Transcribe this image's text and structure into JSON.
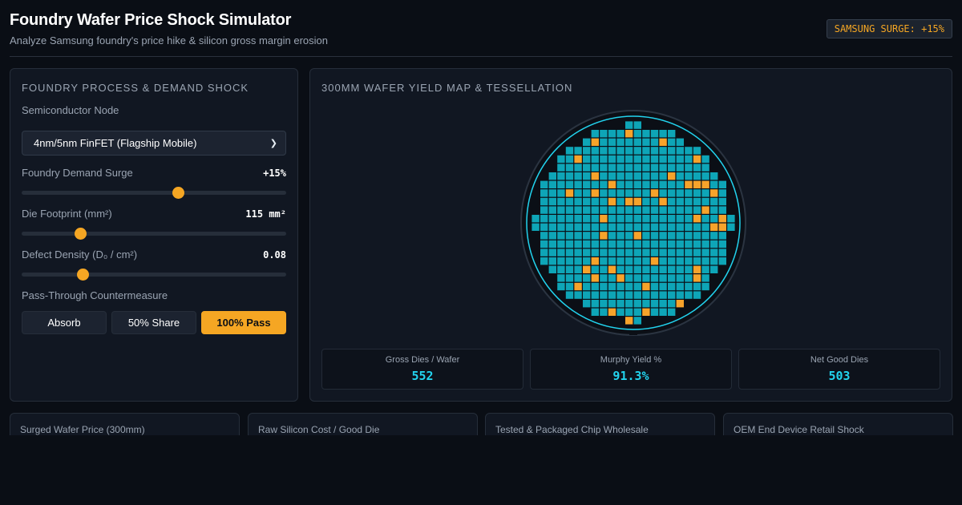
{
  "header": {
    "title": "Foundry Wafer Price Shock Simulator",
    "subtitle": "Analyze Samsung foundry's price hike & silicon gross margin erosion",
    "badge": "SAMSUNG SURGE: +15%"
  },
  "controls": {
    "title": "Foundry Process & Demand Shock",
    "node_label": "Semiconductor Node",
    "node_value": "4nm/5nm FinFET (Flagship Mobile)",
    "demand": {
      "label": "Foundry Demand Surge",
      "value": "+15%",
      "fraction": 0.59
    },
    "die": {
      "label": "Die Footprint (mm²)",
      "value": "115 mm²",
      "fraction": 0.22
    },
    "defect": {
      "label": "Defect Density (D₀ / cm²)",
      "value": "0.08",
      "fraction": 0.23
    },
    "pass_label": "Pass-Through Countermeasure",
    "pass_options": [
      "Absorb",
      "50% Share",
      "100% Pass"
    ],
    "pass_selected": "100% Pass"
  },
  "wafer": {
    "title": "300mm Wafer Yield Map & Tessellation",
    "good_color": "#0ea5b7",
    "defect_color": "#f7a32b",
    "ring_color": "#22d3ee"
  },
  "stats": [
    {
      "label": "Gross Dies / Wafer",
      "value": "552"
    },
    {
      "label": "Murphy Yield %",
      "value": "91.3%"
    },
    {
      "label": "Net Good Dies",
      "value": "503"
    }
  ],
  "cards": [
    "Surged Wafer Price (300mm)",
    "Raw Silicon Cost / Good Die",
    "Tested & Packaged Chip Wholesale",
    "OEM End Device Retail Shock"
  ]
}
